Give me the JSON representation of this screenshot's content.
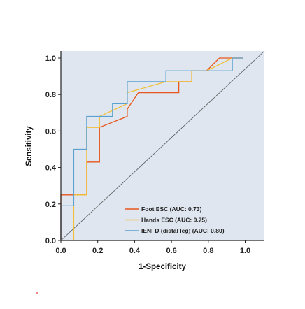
{
  "chart_data": {
    "type": "line",
    "title": "",
    "xlabel": "1-Specificity",
    "ylabel": "Sensitivity",
    "xlim": [
      0,
      1.1
    ],
    "ylim": [
      0,
      1.02
    ],
    "xticks": [
      "0.0",
      "0.2",
      "0.4",
      "0.6",
      "0.8",
      "1.0"
    ],
    "yticks": [
      "0.0",
      "0.2",
      "0.4",
      "0.6",
      "0.8",
      "1.0"
    ],
    "background": "#dfe6ef",
    "diagonal_color": "#555555",
    "legend_position": "bottom-right",
    "series": [
      {
        "name": "Foot ESC (AUC: 0.73)",
        "color": "#e8561d",
        "x": [
          0,
          0,
          0.14,
          0.14,
          0.21,
          0.21,
          0.36,
          0.36,
          0.42,
          0.64,
          0.64,
          0.71,
          0.71,
          0.79,
          0.86,
          0.86,
          0.99
        ],
        "y": [
          0,
          0.25,
          0.25,
          0.43,
          0.43,
          0.62,
          0.68,
          0.72,
          0.81,
          0.81,
          0.87,
          0.87,
          0.93,
          0.93,
          1.0,
          1.0,
          1.0
        ]
      },
      {
        "name": "Hands ESC (AUC: 0.75)",
        "color": "#f2bf3a",
        "x": [
          0.07,
          0.07,
          0.14,
          0.14,
          0.21,
          0.21,
          0.36,
          0.36,
          0.57,
          0.71,
          0.71,
          0.79,
          0.93,
          0.99
        ],
        "y": [
          0,
          0.25,
          0.25,
          0.62,
          0.62,
          0.68,
          0.75,
          0.81,
          0.87,
          0.87,
          0.93,
          0.93,
          1.0,
          1.0
        ]
      },
      {
        "name": "IENFD (distal leg) (AUC: 0.80)",
        "color": "#5aa0d0",
        "x": [
          0,
          0,
          0.07,
          0.07,
          0.14,
          0.14,
          0.28,
          0.28,
          0.36,
          0.36,
          0.57,
          0.57,
          0.93,
          0.93,
          0.99
        ],
        "y": [
          0,
          0.19,
          0.19,
          0.5,
          0.5,
          0.68,
          0.68,
          0.75,
          0.75,
          0.87,
          0.87,
          0.93,
          0.93,
          1.0,
          1.0
        ]
      }
    ]
  },
  "footer_mark": "*"
}
